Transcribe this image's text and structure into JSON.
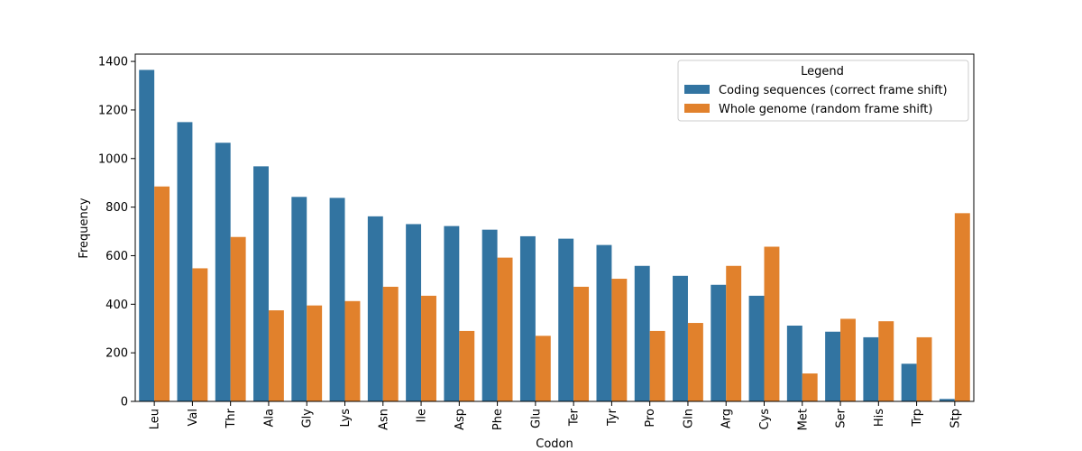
{
  "chart_data": {
    "type": "bar",
    "xlabel": "Codon",
    "ylabel": "Frequency",
    "ylim": [
      0,
      1430
    ],
    "yticks": [
      0,
      200,
      400,
      600,
      800,
      1000,
      1200,
      1400
    ],
    "grid": false,
    "legend": {
      "title": "Legend",
      "placement": "top-right"
    },
    "categories": [
      "Leu",
      "Val",
      "Thr",
      "Ala",
      "Gly",
      "Lys",
      "Asn",
      "Ile",
      "Asp",
      "Phe",
      "Glu",
      "Ter",
      "Tyr",
      "Pro",
      "Gln",
      "Arg",
      "Cys",
      "Met",
      "Ser",
      "His",
      "Trp",
      "Stp"
    ],
    "series": [
      {
        "name": "Coding sequences (correct frame shift)",
        "color": "#3274a1",
        "values": [
          1365,
          1150,
          1065,
          968,
          842,
          838,
          762,
          730,
          722,
          707,
          680,
          670,
          644,
          558,
          517,
          480,
          435,
          312,
          287,
          264,
          155,
          10
        ]
      },
      {
        "name": "Whole genome (random frame shift)",
        "color": "#e1812c",
        "values": [
          885,
          548,
          677,
          375,
          395,
          413,
          472,
          435,
          290,
          592,
          270,
          472,
          505,
          290,
          323,
          558,
          637,
          115,
          340,
          330,
          264,
          775
        ]
      }
    ]
  }
}
